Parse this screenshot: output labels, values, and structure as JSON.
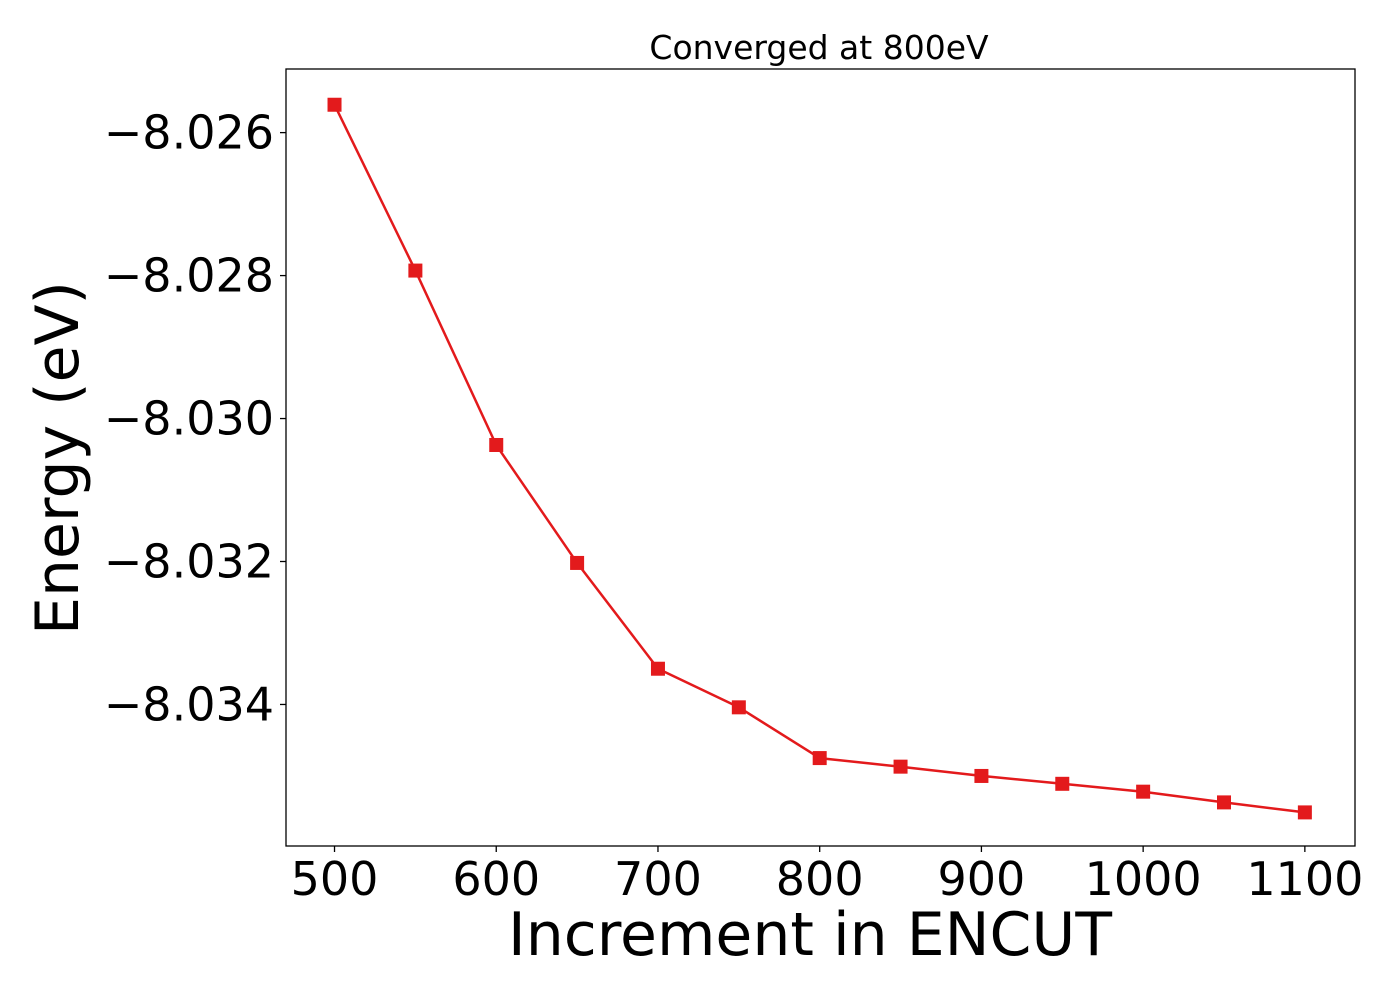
{
  "chart_data": {
    "type": "line",
    "title": "Converged at 800eV",
    "xlabel": "Increment in ENCUT",
    "ylabel": "Energy (eV)",
    "x": [
      500,
      550,
      600,
      650,
      700,
      750,
      800,
      850,
      900,
      950,
      1000,
      1050,
      1100
    ],
    "series": [
      {
        "values": [
          -8.02561,
          -8.02793,
          -8.03037,
          -8.03202,
          -8.0335,
          -8.03404,
          -8.03475,
          -8.03487,
          -8.035,
          -8.03511,
          -8.03522,
          -8.03537,
          -8.03551
        ],
        "color": "#e31a1c",
        "marker": "square"
      }
    ],
    "xlim": [
      470,
      1131
    ],
    "ylim": [
      -8.03598,
      -8.02511
    ],
    "xticks": [
      500,
      600,
      700,
      800,
      900,
      1000,
      1100
    ],
    "xtick_labels": [
      "500",
      "600",
      "700",
      "800",
      "900",
      "1000",
      "1100"
    ],
    "yticks": [
      -8.026,
      -8.028,
      -8.03,
      -8.032,
      -8.034
    ],
    "ytick_labels": [
      "−8.026",
      "−8.028",
      "−8.030",
      "−8.032",
      "−8.034"
    ],
    "grid": false,
    "legend": false
  }
}
